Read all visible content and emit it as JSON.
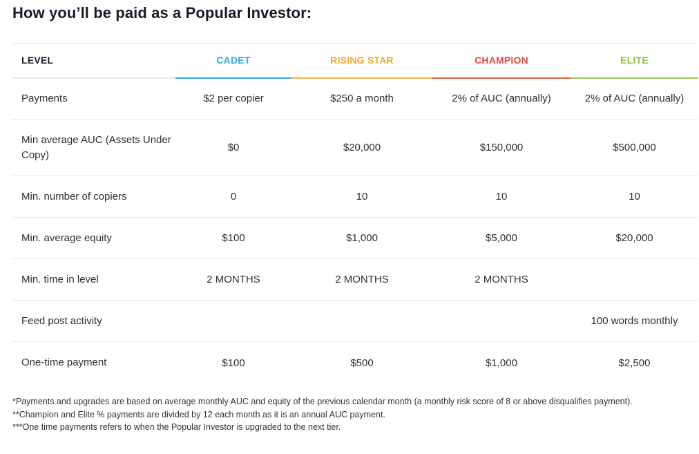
{
  "page_title": "How you’ll be paid as a Popular Investor:",
  "table": {
    "headers": {
      "level": "LEVEL",
      "cadet": "CADET",
      "rising_star": "RISING STAR",
      "champion": "CHAMPION",
      "elite": "ELITE"
    },
    "header_colors": {
      "cadet": "#29a9e0",
      "rising_star": "#f0a830",
      "champion": "#e0493a",
      "elite": "#8cc43f"
    },
    "rows": [
      {
        "label": "Payments",
        "cadet": "$2 per copier",
        "rising_star": "$250 a month",
        "champion": "2% of AUC (annually)",
        "elite": "2% of AUC (annually)"
      },
      {
        "label": "Min average AUC (Assets Under Copy)",
        "cadet": "$0",
        "rising_star": "$20,000",
        "champion": "$150,000",
        "elite": "$500,000"
      },
      {
        "label": "Min. number of copiers",
        "cadet": "0",
        "rising_star": "10",
        "champion": "10",
        "elite": "10"
      },
      {
        "label": "Min. average equity",
        "cadet": "$100",
        "rising_star": "$1,000",
        "champion": "$5,000",
        "elite": "$20,000"
      },
      {
        "label": "Min. time in level",
        "cadet": "2 MONTHS",
        "rising_star": "2 MONTHS",
        "champion": "2 MONTHS",
        "elite": ""
      },
      {
        "label": "Feed post activity",
        "cadet": "",
        "rising_star": "",
        "champion": "",
        "elite": "100 words monthly"
      },
      {
        "label": "One-time payment",
        "cadet": "$100",
        "rising_star": "$500",
        "champion": "$1,000",
        "elite": "$2,500"
      }
    ]
  },
  "footnotes": [
    "*Payments and upgrades are based on average monthly AUC and equity of the previous calendar month (a monthly risk score of 8 or above disqualifies payment).",
    "**Champion and Elite % payments are divided by 12 each month as it is an annual AUC payment.",
    "***One time payments refers to when the Popular Investor is upgraded to the next tier."
  ]
}
